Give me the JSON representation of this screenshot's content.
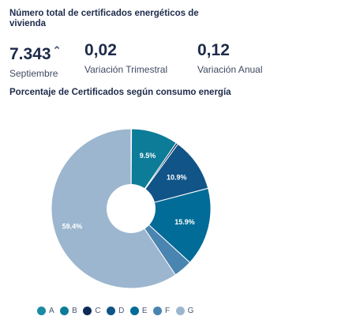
{
  "header": {
    "title": "Número total de certificados energéticos de vivienda"
  },
  "stats": [
    {
      "value": "7.343",
      "label": "Septiembre",
      "trend_icon": "arrow-up-icon",
      "trend_glyph": "⌃"
    },
    {
      "value": "0,02",
      "label": "Variación Trimestral"
    },
    {
      "value": "0,12",
      "label": "Variación Anual"
    }
  ],
  "chart_data": {
    "type": "pie",
    "title": "Porcentaje de Certificados según consumo energía",
    "donut": true,
    "slices": [
      {
        "category": "A",
        "value": 0.1,
        "label": "",
        "color": "#1b8aa4"
      },
      {
        "category": "B",
        "value": 9.5,
        "label": "9.5%",
        "color": "#0c7c98"
      },
      {
        "category": "C",
        "value": 0.4,
        "label": "",
        "color": "#0b2b55"
      },
      {
        "category": "D",
        "value": 10.9,
        "label": "10.9%",
        "color": "#115488"
      },
      {
        "category": "E",
        "value": 15.9,
        "label": "15.9%",
        "color": "#006c97"
      },
      {
        "category": "F",
        "value": 3.8,
        "label": "",
        "color": "#4a84b0"
      },
      {
        "category": "G",
        "value": 59.4,
        "label": "59.4%",
        "color": "#9cb6cf"
      }
    ],
    "legend": {
      "placement": "bottom",
      "items": [
        "A",
        "B",
        "C",
        "D",
        "E",
        "F",
        "G"
      ]
    }
  }
}
